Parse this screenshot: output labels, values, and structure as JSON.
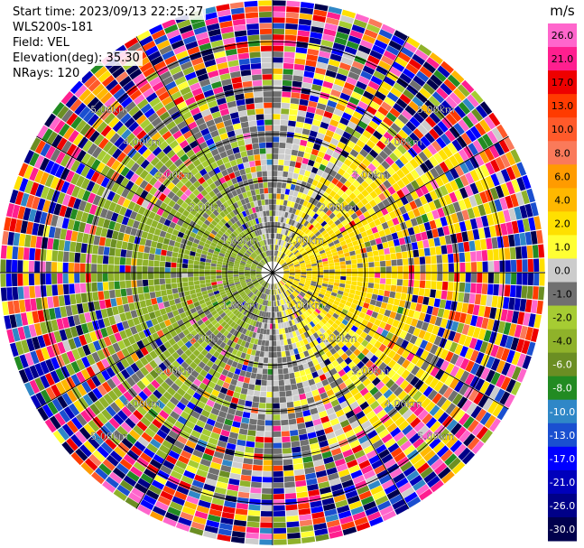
{
  "header": {
    "start_time": "Start time: 2023/09/13 22:25:27",
    "instrument": "WLS200s-181",
    "field": "Field: VEL",
    "elevation": "Elevation(deg): 35.30",
    "nrays": "NRays: 120"
  },
  "chart_data": {
    "type": "heatmap",
    "projection": "polar-ppi",
    "field": "VEL",
    "units": "m/s",
    "range_ring_labels": [
      "1.00km",
      "2.00km",
      "3.00km",
      "4.00km",
      "5.00km"
    ],
    "range_ring_km": [
      1,
      2,
      3,
      4,
      5
    ],
    "max_range_km": 5.9,
    "spoke_angles_deg": [
      0,
      30,
      60,
      90,
      120,
      150,
      180,
      210,
      240,
      270,
      300,
      330
    ],
    "colorbar": {
      "label": "m/s",
      "ticks": [
        "26.0",
        "21.0",
        "17.0",
        "13.0",
        "10.0",
        "8.0",
        "6.0",
        "4.0",
        "2.0",
        "1.0",
        "0.0",
        "-1.0",
        "-2.0",
        "-4.0",
        "-6.0",
        "-8.0",
        "-10.0",
        "-13.0",
        "-17.0",
        "-21.0",
        "-26.0",
        "-30.0"
      ],
      "segments": [
        {
          "from": 26,
          "to": 30,
          "color": "#ff66cc"
        },
        {
          "from": 21,
          "to": 26,
          "color": "#ff1f8f"
        },
        {
          "from": 17,
          "to": 21,
          "color": "#ee0000"
        },
        {
          "from": 13,
          "to": 17,
          "color": "#ff3b00"
        },
        {
          "from": 10,
          "to": 13,
          "color": "#ff5a2a"
        },
        {
          "from": 8,
          "to": 10,
          "color": "#fa7a5a"
        },
        {
          "from": 6,
          "to": 8,
          "color": "#ff9b00"
        },
        {
          "from": 4,
          "to": 6,
          "color": "#ffb800"
        },
        {
          "from": 2,
          "to": 4,
          "color": "#ffe000"
        },
        {
          "from": 1,
          "to": 2,
          "color": "#ffff33"
        },
        {
          "from": 0,
          "to": 1,
          "color": "#cccccc"
        },
        {
          "from": -1,
          "to": 0,
          "color": "#707070"
        },
        {
          "from": -2,
          "to": -1,
          "color": "#a6cc33"
        },
        {
          "from": -4,
          "to": -2,
          "color": "#8fb22a"
        },
        {
          "from": -6,
          "to": -4,
          "color": "#6b8e23"
        },
        {
          "from": -8,
          "to": -6,
          "color": "#228b22"
        },
        {
          "from": -10,
          "to": -8,
          "color": "#2f87c7"
        },
        {
          "from": -13,
          "to": -10,
          "color": "#1a4fd0"
        },
        {
          "from": -17,
          "to": -13,
          "color": "#0000ff"
        },
        {
          "from": -21,
          "to": -17,
          "color": "#0000bb"
        },
        {
          "from": -26,
          "to": -21,
          "color": "#000088"
        },
        {
          "from": -30,
          "to": -26,
          "color": "#00004d"
        }
      ]
    },
    "description_of_pattern": "Receding (positive) velocities dominate the east half, approaching (negative, green) velocities dominate the west half; outer gates become noisy."
  }
}
